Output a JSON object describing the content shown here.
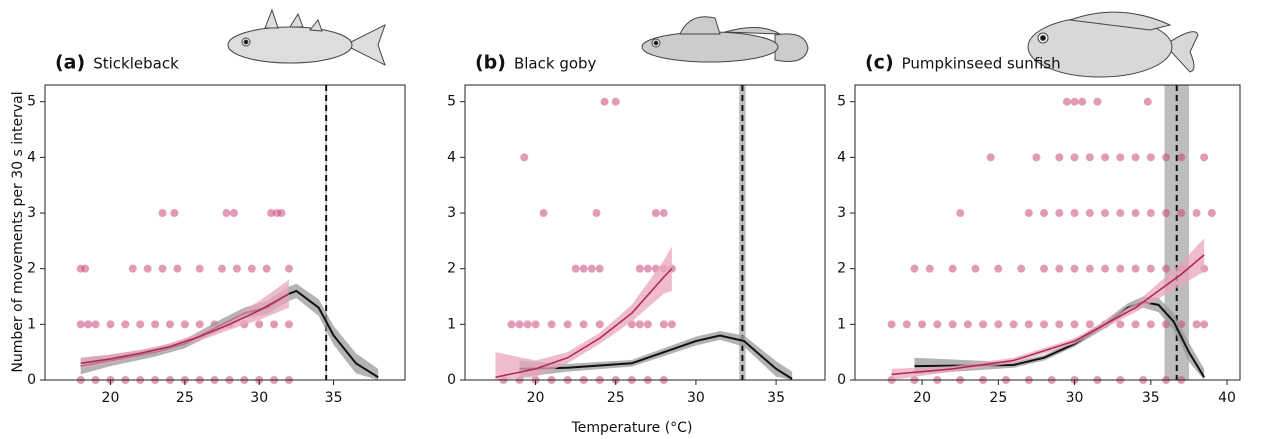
{
  "xlabel": "Temperature (°C)",
  "ylabel": "Number of movements per 30 s interval",
  "chart_data": [
    {
      "type": "scatter",
      "panel_label": "(a)",
      "title": "Stickleback",
      "xlim": [
        15.6,
        39.8
      ],
      "ylim": [
        0,
        5.3
      ],
      "xticks": [
        20,
        25,
        30,
        35
      ],
      "yticks": [
        0,
        1,
        2,
        3,
        4,
        5
      ],
      "points": {
        "color": "#c8497a",
        "x": [
          18,
          19,
          20,
          21,
          22,
          23,
          24,
          25,
          26,
          27,
          28,
          29,
          30,
          31,
          32,
          18,
          18.5,
          19,
          20,
          21,
          22,
          23,
          24,
          25,
          26,
          27,
          28,
          29,
          30,
          31,
          32,
          18,
          18.3,
          21.5,
          22.5,
          23.5,
          24.5,
          26,
          27.5,
          28.5,
          29.5,
          30.5,
          32,
          23.5,
          24.3,
          27.8,
          28.3,
          30.8,
          31.2,
          31.5
        ],
        "y": [
          0,
          0,
          0,
          0,
          0,
          0,
          0,
          0,
          0,
          0,
          0,
          0,
          0,
          0,
          0,
          1,
          1,
          1,
          1,
          1,
          1,
          1,
          1,
          1,
          1,
          1,
          1,
          1,
          1,
          1,
          1,
          2,
          2,
          2,
          2,
          2,
          2,
          2,
          2,
          2,
          2,
          2,
          2,
          3,
          3,
          3,
          3,
          3,
          3,
          3
        ]
      },
      "fits": [
        {
          "color": "#111111",
          "band_color": "#9a9a9a",
          "x": [
            18,
            20,
            23,
            25,
            27.5,
            29,
            30.5,
            32,
            32.5,
            34,
            35,
            36.5,
            38
          ],
          "y": [
            0.25,
            0.35,
            0.5,
            0.65,
            1.0,
            1.2,
            1.3,
            1.55,
            1.6,
            1.3,
            0.8,
            0.3,
            0.05
          ],
          "lower": [
            0.1,
            0.25,
            0.42,
            0.57,
            0.9,
            1.1,
            1.18,
            1.42,
            1.47,
            1.15,
            0.63,
            0.12,
            0
          ],
          "upper": [
            0.4,
            0.45,
            0.58,
            0.73,
            1.1,
            1.3,
            1.42,
            1.68,
            1.73,
            1.45,
            0.97,
            0.48,
            0.2
          ]
        },
        {
          "color": "#b0245a",
          "band_color": "#e9a6bd",
          "x": [
            18,
            20,
            22,
            24,
            26,
            28,
            30,
            32
          ],
          "y": [
            0.3,
            0.38,
            0.48,
            0.6,
            0.78,
            1.0,
            1.25,
            1.55
          ],
          "lower": [
            0.2,
            0.3,
            0.42,
            0.54,
            0.71,
            0.9,
            1.08,
            1.3
          ],
          "upper": [
            0.4,
            0.46,
            0.54,
            0.66,
            0.85,
            1.1,
            1.42,
            1.8
          ]
        }
      ],
      "threshold": {
        "value": 34.5,
        "lower": 34.45,
        "upper": 34.55
      }
    },
    {
      "type": "scatter",
      "panel_label": "(b)",
      "title": "Black goby",
      "xlim": [
        15.6,
        38.05
      ],
      "ylim": [
        0,
        5.3
      ],
      "xticks": [
        20,
        25,
        30,
        35
      ],
      "yticks": [
        0,
        1,
        2,
        3,
        4,
        5
      ],
      "points": {
        "color": "#c8497a",
        "x": [
          18,
          19,
          20,
          21,
          22,
          23,
          24,
          25,
          26,
          27,
          28,
          18.5,
          19,
          19.5,
          20,
          21,
          22,
          23,
          24,
          26,
          26.5,
          27,
          28,
          28.5,
          22.5,
          23,
          23.5,
          24,
          26.5,
          27,
          27.5,
          28,
          28.5,
          20.5,
          23.8,
          27.5,
          28,
          19.3,
          24.3,
          25
        ],
        "y": [
          0,
          0,
          0,
          0,
          0,
          0,
          0,
          0,
          0,
          0,
          0,
          1,
          1,
          1,
          1,
          1,
          1,
          1,
          1,
          1,
          1,
          1,
          1,
          1,
          2,
          2,
          2,
          2,
          2,
          2,
          2,
          2,
          2,
          3,
          3,
          3,
          3,
          4,
          5,
          5
        ]
      },
      "fits": [
        {
          "color": "#111111",
          "band_color": "#9a9a9a",
          "x": [
            19,
            22,
            26,
            28,
            30,
            31.5,
            33,
            34,
            35,
            36
          ],
          "y": [
            0.2,
            0.22,
            0.3,
            0.5,
            0.7,
            0.8,
            0.7,
            0.45,
            0.2,
            0.02
          ],
          "lower": [
            0.05,
            0.15,
            0.24,
            0.43,
            0.62,
            0.72,
            0.6,
            0.33,
            0.06,
            0
          ],
          "upper": [
            0.35,
            0.29,
            0.36,
            0.57,
            0.78,
            0.88,
            0.8,
            0.57,
            0.34,
            0.15
          ]
        },
        {
          "color": "#b0245a",
          "band_color": "#e9a6bd",
          "x": [
            17.5,
            20,
            22,
            24,
            26,
            28,
            28.5
          ],
          "y": [
            0.05,
            0.2,
            0.4,
            0.75,
            1.2,
            1.85,
            2.0
          ],
          "lower": [
            0,
            0.05,
            0.3,
            0.65,
            1.05,
            1.55,
            1.6
          ],
          "upper": [
            0.5,
            0.35,
            0.5,
            0.85,
            1.35,
            2.15,
            2.4
          ]
        }
      ],
      "threshold": {
        "value": 32.9,
        "lower": 32.7,
        "upper": 33.1
      }
    },
    {
      "type": "scatter",
      "panel_label": "(c)",
      "title": "Pumpkinseed sunfish",
      "xlim": [
        15.6,
        40.85
      ],
      "ylim": [
        0,
        5.3
      ],
      "xticks": [
        20,
        25,
        30,
        35,
        40
      ],
      "yticks": [
        0,
        1,
        2,
        3,
        4,
        5
      ],
      "points": {
        "color": "#c8497a",
        "x": [
          18,
          19.5,
          21,
          22.5,
          24,
          25.5,
          27,
          28.5,
          30,
          31.5,
          33,
          34.5,
          36,
          37,
          18,
          19,
          20,
          21,
          22,
          23,
          24,
          25,
          26,
          27,
          28,
          29,
          30,
          31,
          32,
          33,
          34,
          35,
          36,
          37,
          38,
          38.5,
          19.5,
          20.5,
          22,
          23.5,
          25,
          26.5,
          28,
          29,
          30,
          31,
          32,
          33,
          34,
          35,
          36,
          37,
          38.5,
          22.5,
          27,
          28,
          29,
          30,
          31,
          32,
          33,
          34,
          35,
          36,
          37,
          38,
          39,
          24.5,
          27.5,
          29,
          30,
          31,
          32,
          33,
          34,
          35,
          36,
          37,
          38.5,
          29.5,
          30,
          30.5,
          31.5,
          34.8
        ],
        "y": [
          0,
          0,
          0,
          0,
          0,
          0,
          0,
          0,
          0,
          0,
          0,
          0,
          0,
          0,
          1,
          1,
          1,
          1,
          1,
          1,
          1,
          1,
          1,
          1,
          1,
          1,
          1,
          1,
          1,
          1,
          1,
          1,
          1,
          1,
          1,
          1,
          2,
          2,
          2,
          2,
          2,
          2,
          2,
          2,
          2,
          2,
          2,
          2,
          2,
          2,
          2,
          2,
          2,
          3,
          3,
          3,
          3,
          3,
          3,
          3,
          3,
          3,
          3,
          3,
          3,
          3,
          3,
          4,
          4,
          4,
          4,
          4,
          4,
          4,
          4,
          4,
          4,
          4,
          4,
          5,
          5,
          5,
          5,
          5
        ]
      },
      "fits": [
        {
          "color": "#111111",
          "band_color": "#9a9a9a",
          "x": [
            19.5,
            26,
            28,
            30,
            32,
            33.5,
            34.5,
            35.5,
            36.5,
            37.5,
            38.5
          ],
          "y": [
            0.25,
            0.27,
            0.4,
            0.65,
            1.0,
            1.3,
            1.4,
            1.35,
            1.05,
            0.5,
            0.05
          ],
          "lower": [
            0.1,
            0.22,
            0.35,
            0.6,
            0.93,
            1.22,
            1.3,
            1.22,
            0.9,
            0.33,
            0
          ],
          "upper": [
            0.4,
            0.32,
            0.45,
            0.7,
            1.07,
            1.38,
            1.5,
            1.48,
            1.2,
            0.67,
            0.2
          ]
        },
        {
          "color": "#b0245a",
          "band_color": "#e9a6bd",
          "x": [
            18,
            22,
            26,
            30,
            34,
            37,
            38.5
          ],
          "y": [
            0.1,
            0.2,
            0.35,
            0.7,
            1.3,
            1.9,
            2.25
          ],
          "lower": [
            0,
            0.15,
            0.3,
            0.65,
            1.22,
            1.7,
            1.95
          ],
          "upper": [
            0.2,
            0.25,
            0.4,
            0.75,
            1.38,
            2.1,
            2.55
          ]
        }
      ],
      "threshold": {
        "value": 36.7,
        "lower": 35.9,
        "upper": 37.5
      }
    }
  ]
}
